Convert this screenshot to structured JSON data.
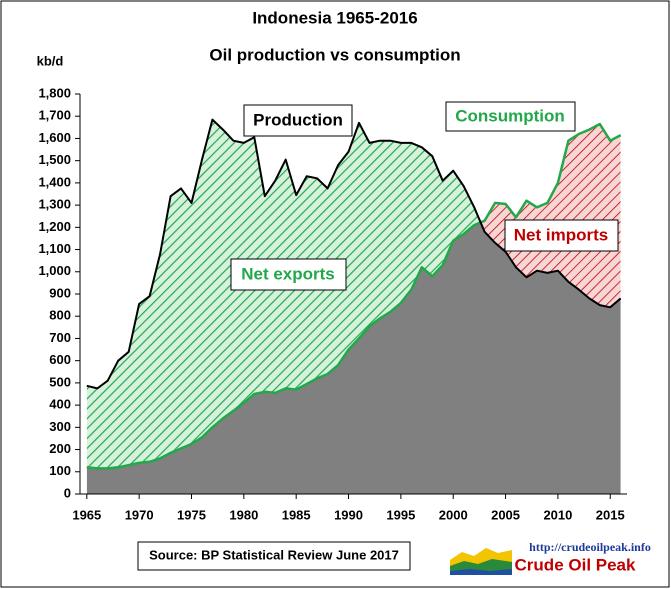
{
  "chart_data": {
    "type": "area",
    "title": "Indonesia 1965-2016",
    "subtitle": "Oil production vs consumption",
    "y_label": "kb/d",
    "x": [
      1965,
      1966,
      1967,
      1968,
      1969,
      1970,
      1971,
      1972,
      1973,
      1974,
      1975,
      1976,
      1977,
      1978,
      1979,
      1980,
      1981,
      1982,
      1983,
      1984,
      1985,
      1986,
      1987,
      1988,
      1989,
      1990,
      1991,
      1992,
      1993,
      1994,
      1995,
      1996,
      1997,
      1998,
      1999,
      2000,
      2001,
      2002,
      2003,
      2004,
      2005,
      2006,
      2007,
      2008,
      2009,
      2010,
      2011,
      2012,
      2013,
      2014,
      2015,
      2016
    ],
    "series": [
      {
        "name": "Production",
        "color": "#000000",
        "values": [
          487,
          475,
          510,
          600,
          640,
          855,
          890,
          1080,
          1340,
          1375,
          1310,
          1505,
          1685,
          1640,
          1590,
          1580,
          1605,
          1340,
          1410,
          1505,
          1345,
          1430,
          1420,
          1375,
          1480,
          1540,
          1670,
          1580,
          1590,
          1590,
          1580,
          1580,
          1560,
          1520,
          1410,
          1455,
          1385,
          1290,
          1180,
          1130,
          1090,
          1020,
          975,
          1005,
          995,
          1005,
          955,
          920,
          880,
          850,
          840,
          880
        ]
      },
      {
        "name": "Consumption",
        "color": "#22a84a",
        "values": [
          120,
          115,
          115,
          120,
          130,
          140,
          145,
          160,
          185,
          205,
          225,
          255,
          300,
          340,
          375,
          410,
          450,
          460,
          455,
          475,
          470,
          495,
          520,
          540,
          580,
          650,
          700,
          755,
          790,
          820,
          860,
          920,
          1020,
          980,
          1030,
          1140,
          1170,
          1210,
          1230,
          1310,
          1305,
          1245,
          1320,
          1290,
          1310,
          1400,
          1590,
          1620,
          1640,
          1665,
          1590,
          1615
        ]
      }
    ],
    "annotations": {
      "exports": "Net exports",
      "imports": "Net imports"
    },
    "source": "Source: BP Statistical Review  June 2017",
    "logo_url": "http://crudeoilpeak.info",
    "logo_name": "Crude Oil Peak",
    "xlim": [
      1964.35,
      2016.6
    ],
    "xticks": [
      1965,
      1970,
      1975,
      1980,
      1985,
      1990,
      1995,
      2000,
      2005,
      2010,
      2015
    ],
    "ylim": [
      0,
      1800
    ],
    "yticks": [
      0,
      100,
      200,
      300,
      400,
      500,
      600,
      700,
      800,
      900,
      {
        "value": 1000,
        "label": "1,000"
      },
      {
        "value": 1100,
        "label": "1,100"
      },
      {
        "value": 1200,
        "label": "1,200"
      },
      {
        "value": 1300,
        "label": "1,300"
      },
      {
        "value": 1400,
        "label": "1,400"
      },
      {
        "value": 1500,
        "label": "1,500"
      },
      {
        "value": 1600,
        "label": "1,600"
      },
      {
        "value": 1700,
        "label": "1,700"
      },
      {
        "value": 1800,
        "label": "1,800"
      }
    ],
    "export_color": "#22a84a",
    "import_color": "#c00000",
    "base_color": "#808080"
  }
}
